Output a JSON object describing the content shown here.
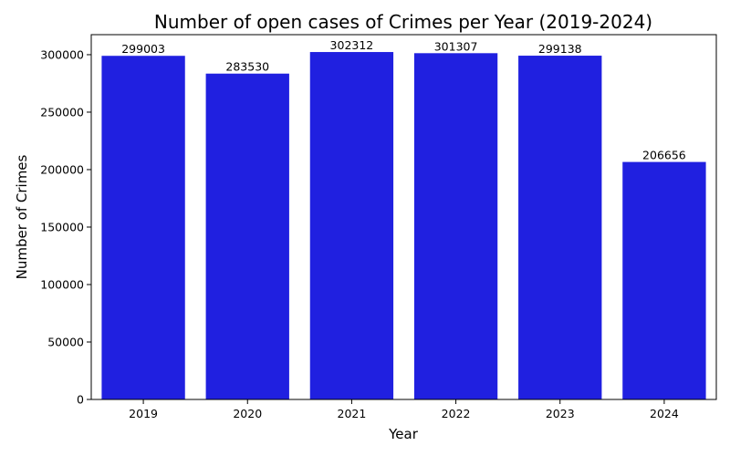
{
  "chart_data": {
    "type": "bar",
    "title": "Number of open cases of Crimes per Year (2019-2024)",
    "xlabel": "Year",
    "ylabel": "Number of Crimes",
    "categories": [
      "2019",
      "2020",
      "2021",
      "2022",
      "2023",
      "2024"
    ],
    "values": [
      299003,
      283530,
      302312,
      301307,
      299138,
      206656
    ],
    "data_labels": [
      "299003",
      "283530",
      "302312",
      "301307",
      "299138",
      "206656"
    ],
    "y_ticks": [
      0,
      50000,
      100000,
      150000,
      200000,
      250000,
      300000
    ],
    "y_tick_labels": [
      "0",
      "50000",
      "100000",
      "150000",
      "200000",
      "250000",
      "300000"
    ],
    "ylim": [
      0,
      317428
    ],
    "bar_color": "#2020e0",
    "grid": false,
    "legend": "none"
  }
}
